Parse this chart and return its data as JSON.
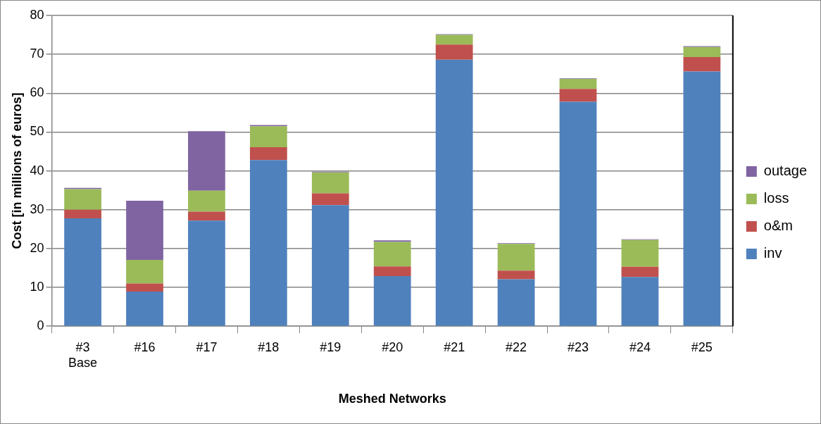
{
  "chart_data": {
    "type": "bar",
    "stacked": true,
    "xlabel": "Meshed Networks",
    "ylabel": "Cost [in millions of euros]",
    "categories": [
      "#3\nBase",
      "#16",
      "#17",
      "#18",
      "#19",
      "#20",
      "#21",
      "#22",
      "#23",
      "#24",
      "#25"
    ],
    "series": [
      {
        "name": "inv",
        "color": "#4f81bd",
        "values": [
          27.8,
          8.9,
          27.2,
          42.8,
          31.2,
          12.9,
          68.6,
          12.1,
          57.8,
          12.7,
          65.6
        ]
      },
      {
        "name": "o&m",
        "color": "#c0504d",
        "values": [
          2.2,
          2.1,
          2.3,
          3.3,
          3.0,
          2.5,
          3.9,
          2.2,
          3.3,
          2.6,
          3.7
        ]
      },
      {
        "name": "loss",
        "color": "#9bbb59",
        "values": [
          5.3,
          6.1,
          5.4,
          5.4,
          5.4,
          6.3,
          2.5,
          6.9,
          2.6,
          6.9,
          2.6
        ]
      },
      {
        "name": "outage",
        "color": "#8064a2",
        "values": [
          0.3,
          15.2,
          15.3,
          0.3,
          0.2,
          0.4,
          0.2,
          0.2,
          0.1,
          0.2,
          0.2
        ]
      }
    ],
    "ylim": [
      0,
      80
    ],
    "yticks": [
      0,
      10,
      20,
      30,
      40,
      50,
      60,
      70,
      80
    ],
    "grid": "y",
    "legend": "right"
  }
}
